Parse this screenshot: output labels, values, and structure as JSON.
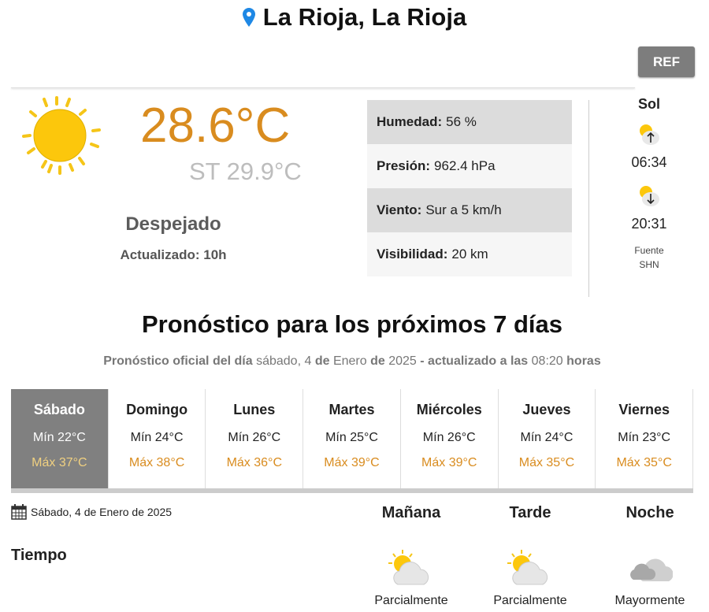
{
  "header": {
    "title": "La Rioja, La Rioja",
    "ref_label": "REF"
  },
  "current": {
    "icon": "sun-icon",
    "temperature": "28.6°C",
    "feels_like": "ST 29.9°C",
    "condition": "Despejado",
    "updated": "Actualizado: 10h"
  },
  "details": [
    {
      "label": "Humedad:",
      "value": "56 %"
    },
    {
      "label": "Presión:",
      "value": "962.4 hPa"
    },
    {
      "label": "Viento:",
      "value": "Sur a 5 km/h"
    },
    {
      "label": "Visibilidad:",
      "value": "20 km"
    }
  ],
  "sun": {
    "title": "Sol",
    "sunrise": "06:34",
    "sunset": "20:31",
    "source_line1": "Fuente",
    "source_line2": "SHN"
  },
  "forecast": {
    "heading": "Pronóstico para los próximos 7 días",
    "subtitle": {
      "p1": "Pronóstico oficial del día",
      "p2": "sábado, 4",
      "p3": "de",
      "p4": "Enero",
      "p5": "de",
      "p6": "2025",
      "p7": "- actualizado a las",
      "p8": "08:20",
      "p9": "horas"
    },
    "days": [
      {
        "name": "Sábado",
        "min": "Mín 22°C",
        "max": "Máx 37°C"
      },
      {
        "name": "Domingo",
        "min": "Mín 24°C",
        "max": "Máx 38°C"
      },
      {
        "name": "Lunes",
        "min": "Mín 26°C",
        "max": "Máx 36°C"
      },
      {
        "name": "Martes",
        "min": "Mín 25°C",
        "max": "Máx 39°C"
      },
      {
        "name": "Miércoles",
        "min": "Mín 26°C",
        "max": "Máx 39°C"
      },
      {
        "name": "Jueves",
        "min": "Mín 24°C",
        "max": "Máx 35°C"
      },
      {
        "name": "Viernes",
        "min": "Mín 23°C",
        "max": "Máx 35°C"
      }
    ]
  },
  "detail": {
    "date": "Sábado, 4 de Enero de 2025",
    "row_label": "Tiempo",
    "periods": [
      {
        "name": "Mañana",
        "icon": "partly-cloudy-icon",
        "condition": "Parcialmente"
      },
      {
        "name": "Tarde",
        "icon": "partly-cloudy-icon",
        "condition": "Parcialmente"
      },
      {
        "name": "Noche",
        "icon": "cloudy-icon",
        "condition": "Mayormente"
      }
    ]
  },
  "colors": {
    "accent": "#d98c1f",
    "selected_day": "#808080",
    "pin": "#1e88e5"
  }
}
